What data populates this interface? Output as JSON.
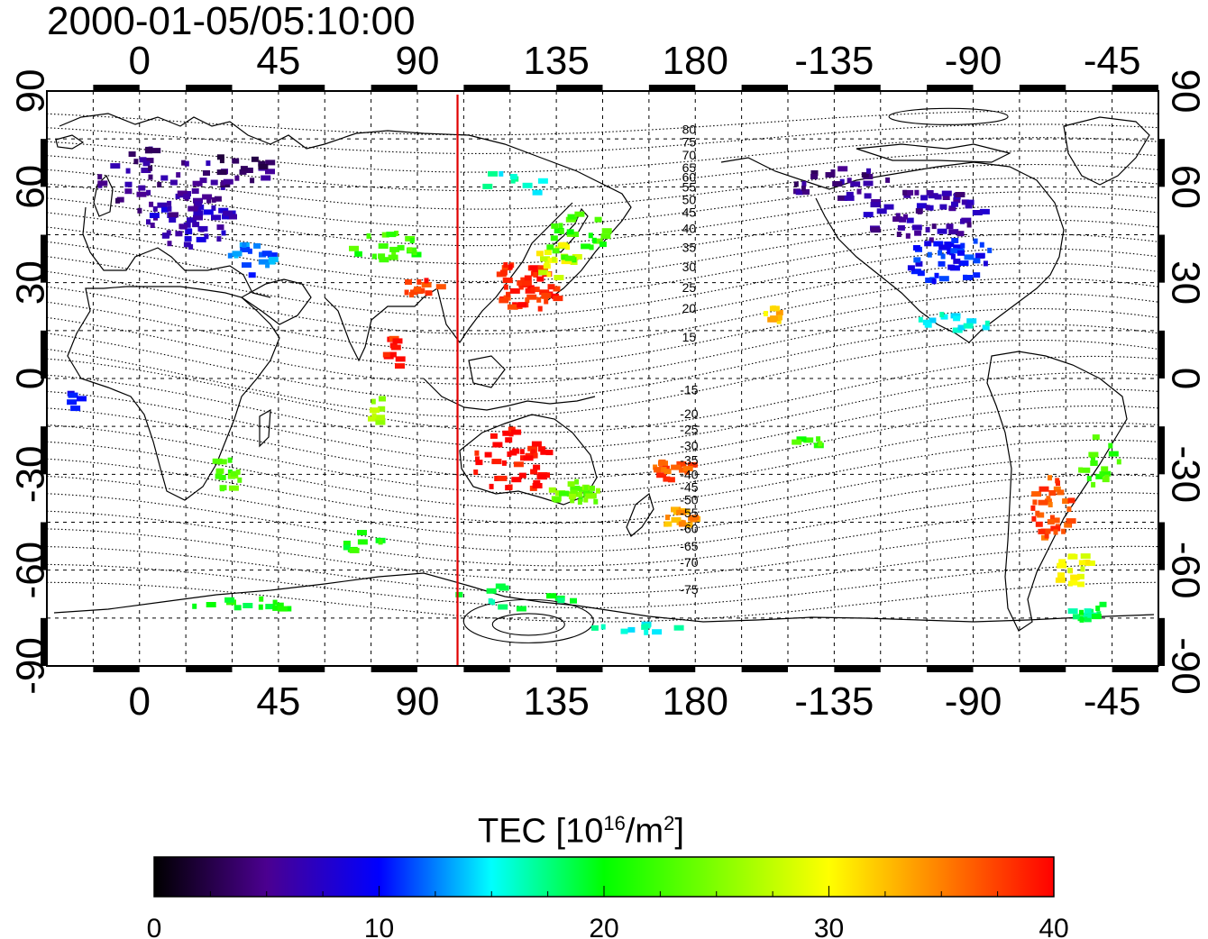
{
  "title": "2000-01-05/05:10:00",
  "map": {
    "projection": "cylindrical",
    "lon_range": [
      -30,
      330
    ],
    "lat_range": [
      -90,
      90
    ],
    "x_ticks": [
      {
        "lon": 0,
        "label": "0"
      },
      {
        "lon": 45,
        "label": "45"
      },
      {
        "lon": 90,
        "label": "90"
      },
      {
        "lon": 135,
        "label": "135"
      },
      {
        "lon": 180,
        "label": "180"
      },
      {
        "lon": 225,
        "label": "-135"
      },
      {
        "lon": 270,
        "label": "-90"
      },
      {
        "lon": 315,
        "label": "-45"
      }
    ],
    "y_ticks": [
      {
        "lat": 90,
        "label": "90"
      },
      {
        "lat": 60,
        "label": "60"
      },
      {
        "lat": 30,
        "label": "30"
      },
      {
        "lat": 0,
        "label": "0"
      },
      {
        "lat": -30,
        "label": "-30"
      },
      {
        "lat": -60,
        "label": "-60"
      },
      {
        "lat": -90,
        "label": "-90"
      }
    ],
    "grid": "dashed every 15 degrees",
    "terminator_lon": 103,
    "terminator_color": "#e00000",
    "magnetic_latitude_labels": [
      {
        "text": "80",
        "lat": 78
      },
      {
        "text": "75",
        "lat": 74
      },
      {
        "text": "70",
        "lat": 70
      },
      {
        "text": "65",
        "lat": 66
      },
      {
        "text": "60",
        "lat": 63
      },
      {
        "text": "55",
        "lat": 60
      },
      {
        "text": "50",
        "lat": 56
      },
      {
        "text": "45",
        "lat": 52
      },
      {
        "text": "40",
        "lat": 47
      },
      {
        "text": "35",
        "lat": 41
      },
      {
        "text": "30",
        "lat": 35
      },
      {
        "text": "25",
        "lat": 28.5
      },
      {
        "text": "20",
        "lat": 22
      },
      {
        "text": "15",
        "lat": 13
      },
      {
        "text": "-15",
        "lat": -3.5
      },
      {
        "text": "-20",
        "lat": -11
      },
      {
        "text": "-25",
        "lat": -16
      },
      {
        "text": "-30",
        "lat": -21
      },
      {
        "text": "-35",
        "lat": -25.5
      },
      {
        "text": "-40",
        "lat": -30
      },
      {
        "text": "-45",
        "lat": -34
      },
      {
        "text": "-50",
        "lat": -38
      },
      {
        "text": "-55",
        "lat": -42
      },
      {
        "text": "-60",
        "lat": -47
      },
      {
        "text": "-65",
        "lat": -52.5
      },
      {
        "text": "-70",
        "lat": -57.5
      },
      {
        "text": "-75",
        "lat": -66
      }
    ],
    "tec_clusters": [
      {
        "lon": 5,
        "lat": 62,
        "rx": 22,
        "ry": 12,
        "n": 55,
        "v": 5
      },
      {
        "lon": 15,
        "lat": 50,
        "rx": 14,
        "ry": 8,
        "n": 45,
        "v": 7
      },
      {
        "lon": 30,
        "lat": 66,
        "rx": 14,
        "ry": 6,
        "n": 20,
        "v": 4
      },
      {
        "lon": 35,
        "lat": 38,
        "rx": 8,
        "ry": 5,
        "n": 18,
        "v": 12
      },
      {
        "lon": 78,
        "lat": 42,
        "rx": 12,
        "ry": 5,
        "n": 22,
        "v": 22
      },
      {
        "lon": 90,
        "lat": 28,
        "rx": 7,
        "ry": 4,
        "n": 12,
        "v": 38
      },
      {
        "lon": 125,
        "lat": 30,
        "rx": 12,
        "ry": 8,
        "n": 55,
        "v": 39
      },
      {
        "lon": 135,
        "lat": 38,
        "rx": 8,
        "ry": 6,
        "n": 20,
        "v": 29
      },
      {
        "lon": 140,
        "lat": 46,
        "rx": 10,
        "ry": 8,
        "n": 25,
        "v": 22
      },
      {
        "lon": 120,
        "lat": 62,
        "rx": 10,
        "ry": 5,
        "n": 10,
        "v": 16
      },
      {
        "lon": 82,
        "lat": 10,
        "rx": 4,
        "ry": 6,
        "n": 10,
        "v": 39
      },
      {
        "lon": 75,
        "lat": -8,
        "rx": 3,
        "ry": 6,
        "n": 8,
        "v": 26
      },
      {
        "lon": 120,
        "lat": -25,
        "rx": 13,
        "ry": 10,
        "n": 45,
        "v": 40
      },
      {
        "lon": 140,
        "lat": -35,
        "rx": 10,
        "ry": 4,
        "n": 25,
        "v": 24
      },
      {
        "lon": 172,
        "lat": -27,
        "rx": 6,
        "ry": 4,
        "n": 18,
        "v": 37
      },
      {
        "lon": 174,
        "lat": -42,
        "rx": 6,
        "ry": 4,
        "n": 18,
        "v": 34
      },
      {
        "lon": 27,
        "lat": -30,
        "rx": 6,
        "ry": 6,
        "n": 16,
        "v": 23
      },
      {
        "lon": 72,
        "lat": -50,
        "rx": 8,
        "ry": 4,
        "n": 8,
        "v": 21
      },
      {
        "lon": 35,
        "lat": -70,
        "rx": 20,
        "ry": 2,
        "n": 14,
        "v": 20
      },
      {
        "lon": 120,
        "lat": -68,
        "rx": 20,
        "ry": 4,
        "n": 12,
        "v": 18
      },
      {
        "lon": 160,
        "lat": -78,
        "rx": 18,
        "ry": 2,
        "n": 10,
        "v": 16
      },
      {
        "lon": 253,
        "lat": 52,
        "rx": 20,
        "ry": 8,
        "n": 55,
        "v": 6
      },
      {
        "lon": 262,
        "lat": 38,
        "rx": 14,
        "ry": 8,
        "n": 45,
        "v": 10
      },
      {
        "lon": 225,
        "lat": 62,
        "rx": 18,
        "ry": 5,
        "n": 25,
        "v": 5
      },
      {
        "lon": 262,
        "lat": 18,
        "rx": 12,
        "ry": 3,
        "n": 14,
        "v": 15
      },
      {
        "lon": 205,
        "lat": 21,
        "rx": 3,
        "ry": 3,
        "n": 8,
        "v": 32
      },
      {
        "lon": 295,
        "lat": -40,
        "rx": 7,
        "ry": 10,
        "n": 35,
        "v": 37
      },
      {
        "lon": 302,
        "lat": -60,
        "rx": 6,
        "ry": 6,
        "n": 20,
        "v": 30
      },
      {
        "lon": 310,
        "lat": -25,
        "rx": 7,
        "ry": 8,
        "n": 18,
        "v": 22
      },
      {
        "lon": 307,
        "lat": -72,
        "rx": 8,
        "ry": 3,
        "n": 14,
        "v": 18
      },
      {
        "lon": 215,
        "lat": -20,
        "rx": 5,
        "ry": 4,
        "n": 6,
        "v": 22
      },
      {
        "lon": -22,
        "lat": -5,
        "rx": 2,
        "ry": 4,
        "n": 5,
        "v": 10
      }
    ]
  },
  "colorbar": {
    "label_main": "TEC  [10",
    "label_sup1": "16",
    "label_mid": "/m",
    "label_sup2": "2",
    "label_end": "]",
    "min": 0,
    "max": 40,
    "tick_labels": [
      {
        "value": 0,
        "label": "0"
      },
      {
        "value": 10,
        "label": "10"
      },
      {
        "value": 20,
        "label": "20"
      },
      {
        "value": 30,
        "label": "30"
      },
      {
        "value": 40,
        "label": "40"
      }
    ],
    "stops": [
      {
        "v": 0,
        "c": "#000000"
      },
      {
        "v": 5,
        "c": "#4b0090"
      },
      {
        "v": 10,
        "c": "#0000ff"
      },
      {
        "v": 15,
        "c": "#00ffff"
      },
      {
        "v": 20,
        "c": "#00ff00"
      },
      {
        "v": 25,
        "c": "#80ff00"
      },
      {
        "v": 30,
        "c": "#ffff00"
      },
      {
        "v": 35,
        "c": "#ff8000"
      },
      {
        "v": 40,
        "c": "#ff0000"
      }
    ]
  }
}
